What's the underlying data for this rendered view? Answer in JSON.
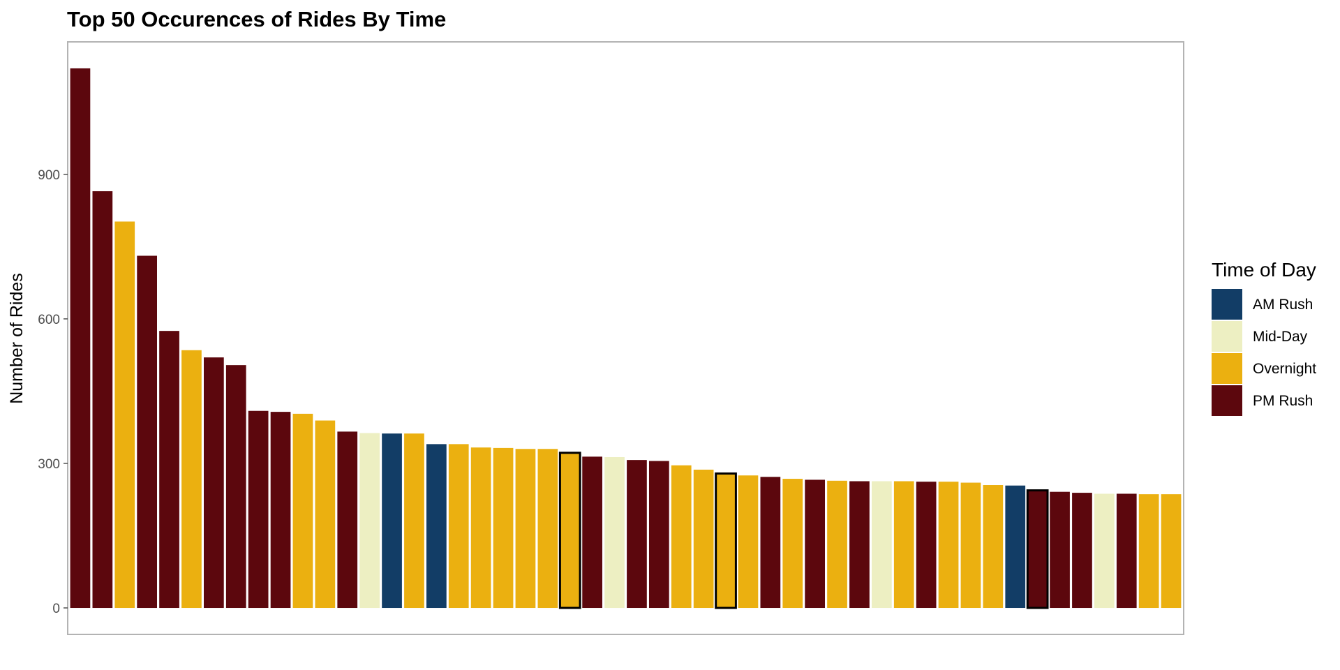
{
  "chart_data": {
    "type": "bar",
    "title": "Top 50 Occurences of Rides By Time",
    "xlabel": "",
    "ylabel": "Number of Rides",
    "ylim": [
      -55,
      1175
    ],
    "yticks": [
      0,
      300,
      600,
      900
    ],
    "ytick_labels": [
      "0",
      "300",
      "600",
      "900"
    ],
    "grid": false,
    "legend": {
      "title": "Time of Day",
      "position": "right",
      "entries": [
        {
          "label": "AM Rush",
          "color": "#123d66"
        },
        {
          "label": "Mid-Day",
          "color": "#edefc2"
        },
        {
          "label": "Overnight",
          "color": "#ebb010"
        },
        {
          "label": "PM Rush",
          "color": "#5c070d"
        }
      ]
    },
    "bars": [
      {
        "value": 1120,
        "group": "PM Rush",
        "outlined": false
      },
      {
        "value": 865,
        "group": "PM Rush",
        "outlined": false
      },
      {
        "value": 802,
        "group": "Overnight",
        "outlined": false
      },
      {
        "value": 731,
        "group": "PM Rush",
        "outlined": false
      },
      {
        "value": 575,
        "group": "PM Rush",
        "outlined": false
      },
      {
        "value": 535,
        "group": "Overnight",
        "outlined": false
      },
      {
        "value": 520,
        "group": "PM Rush",
        "outlined": false
      },
      {
        "value": 504,
        "group": "PM Rush",
        "outlined": false
      },
      {
        "value": 409,
        "group": "PM Rush",
        "outlined": false
      },
      {
        "value": 407,
        "group": "PM Rush",
        "outlined": false
      },
      {
        "value": 403,
        "group": "Overnight",
        "outlined": false
      },
      {
        "value": 389,
        "group": "Overnight",
        "outlined": false
      },
      {
        "value": 366,
        "group": "PM Rush",
        "outlined": false
      },
      {
        "value": 363,
        "group": "Mid-Day",
        "outlined": false
      },
      {
        "value": 362,
        "group": "AM Rush",
        "outlined": false
      },
      {
        "value": 362,
        "group": "Overnight",
        "outlined": false
      },
      {
        "value": 340,
        "group": "AM Rush",
        "outlined": false
      },
      {
        "value": 340,
        "group": "Overnight",
        "outlined": false
      },
      {
        "value": 333,
        "group": "Overnight",
        "outlined": false
      },
      {
        "value": 332,
        "group": "Overnight",
        "outlined": false
      },
      {
        "value": 330,
        "group": "Overnight",
        "outlined": false
      },
      {
        "value": 330,
        "group": "Overnight",
        "outlined": false
      },
      {
        "value": 322,
        "group": "Overnight",
        "outlined": true
      },
      {
        "value": 314,
        "group": "PM Rush",
        "outlined": false
      },
      {
        "value": 313,
        "group": "Mid-Day",
        "outlined": false
      },
      {
        "value": 307,
        "group": "PM Rush",
        "outlined": false
      },
      {
        "value": 305,
        "group": "PM Rush",
        "outlined": false
      },
      {
        "value": 296,
        "group": "Overnight",
        "outlined": false
      },
      {
        "value": 287,
        "group": "Overnight",
        "outlined": false
      },
      {
        "value": 279,
        "group": "Overnight",
        "outlined": true
      },
      {
        "value": 275,
        "group": "Overnight",
        "outlined": false
      },
      {
        "value": 272,
        "group": "PM Rush",
        "outlined": false
      },
      {
        "value": 268,
        "group": "Overnight",
        "outlined": false
      },
      {
        "value": 266,
        "group": "PM Rush",
        "outlined": false
      },
      {
        "value": 264,
        "group": "Overnight",
        "outlined": false
      },
      {
        "value": 263,
        "group": "PM Rush",
        "outlined": false
      },
      {
        "value": 263,
        "group": "Mid-Day",
        "outlined": false
      },
      {
        "value": 263,
        "group": "Overnight",
        "outlined": false
      },
      {
        "value": 262,
        "group": "PM Rush",
        "outlined": false
      },
      {
        "value": 262,
        "group": "Overnight",
        "outlined": false
      },
      {
        "value": 260,
        "group": "Overnight",
        "outlined": false
      },
      {
        "value": 255,
        "group": "Overnight",
        "outlined": false
      },
      {
        "value": 254,
        "group": "AM Rush",
        "outlined": false
      },
      {
        "value": 244,
        "group": "PM Rush",
        "outlined": true
      },
      {
        "value": 241,
        "group": "PM Rush",
        "outlined": false
      },
      {
        "value": 239,
        "group": "PM Rush",
        "outlined": false
      },
      {
        "value": 237,
        "group": "Mid-Day",
        "outlined": false
      },
      {
        "value": 237,
        "group": "PM Rush",
        "outlined": false
      },
      {
        "value": 236,
        "group": "Overnight",
        "outlined": false
      },
      {
        "value": 236,
        "group": "Overnight",
        "outlined": false
      }
    ]
  }
}
